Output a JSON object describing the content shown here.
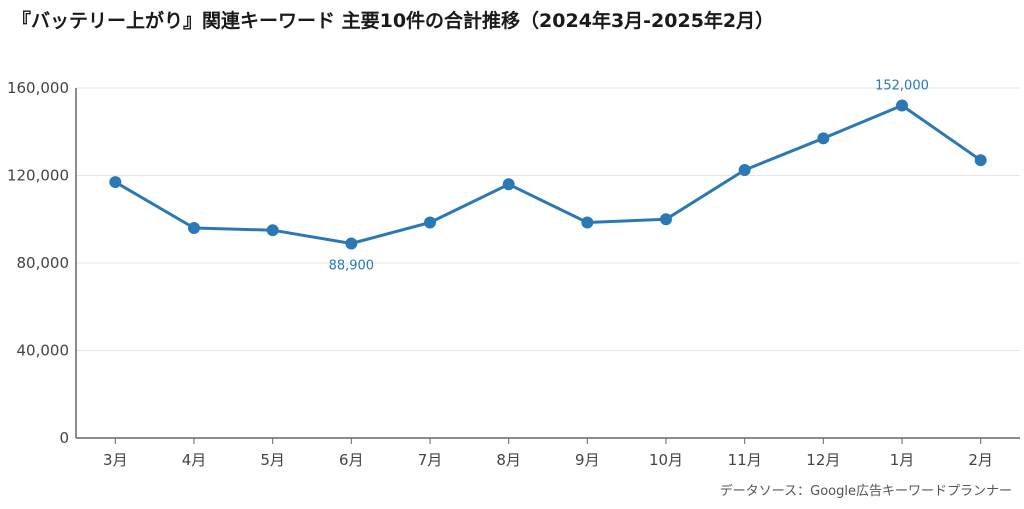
{
  "chart_data": {
    "type": "line",
    "title": "『バッテリー上がり』関連キーワード 主要10件の合計推移（2024年3月-2025年2月）",
    "categories": [
      "3月",
      "4月",
      "5月",
      "6月",
      "7月",
      "8月",
      "9月",
      "10月",
      "11月",
      "12月",
      "1月",
      "2月"
    ],
    "values": [
      117000,
      96000,
      95000,
      88900,
      98500,
      116000,
      98500,
      100000,
      122500,
      137000,
      152000,
      127000
    ],
    "ylim": [
      0,
      160000
    ],
    "yticks": [
      "0",
      "40,000",
      "80,000",
      "120,000",
      "160,000"
    ],
    "grid": true,
    "data_labels": [
      {
        "index": 3,
        "text": "88,900"
      },
      {
        "index": 10,
        "text": "152,000"
      }
    ],
    "line_color": "#2a79b4",
    "grid_color": "#e6e6e6",
    "axis_color": "#666666"
  },
  "source": "データソース：Google広告キーワードプランナー"
}
